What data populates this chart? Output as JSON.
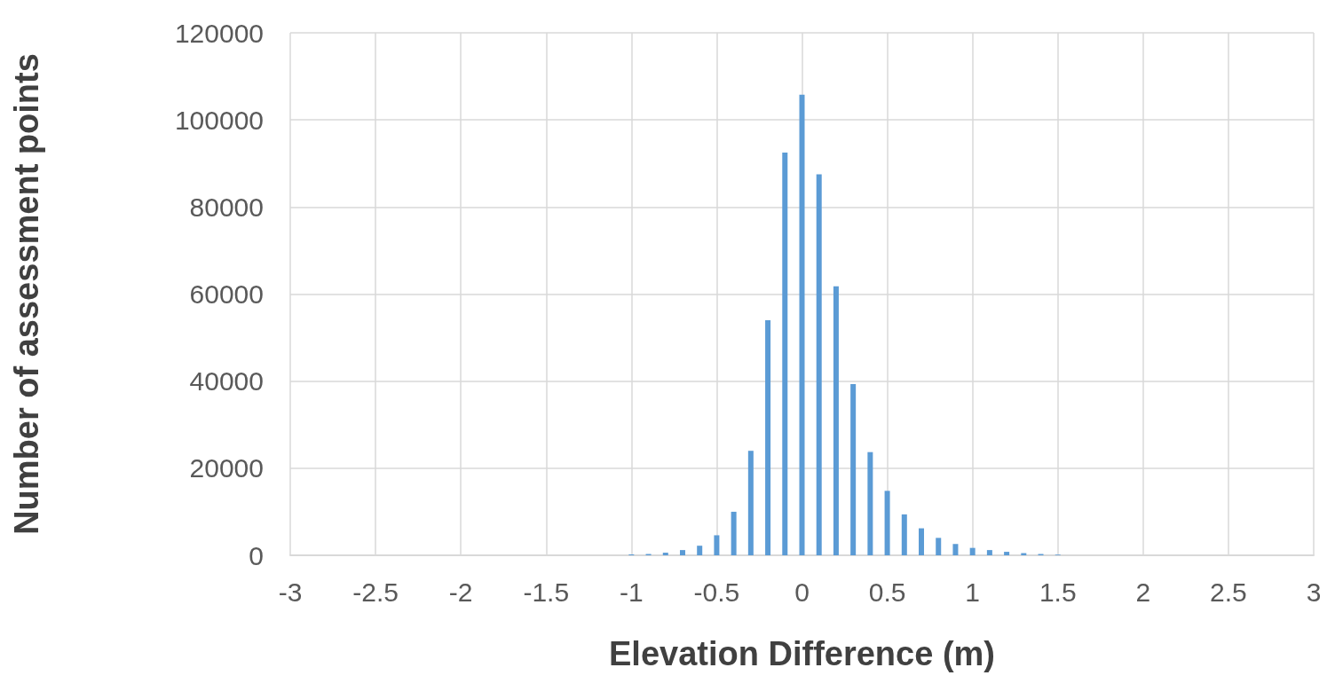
{
  "chart_data": {
    "type": "bar",
    "xlabel": "Elevation Difference (m)",
    "ylabel": "Number of assessment points",
    "x": [
      -1.0,
      -0.9,
      -0.8,
      -0.7,
      -0.6,
      -0.5,
      -0.4,
      -0.3,
      -0.2,
      -0.1,
      0,
      0.1,
      0.2,
      0.3,
      0.4,
      0.5,
      0.6,
      0.7,
      0.8,
      0.9,
      1.0,
      1.1,
      1.2,
      1.3,
      1.4,
      1.5
    ],
    "values": [
      200,
      300,
      600,
      1200,
      2200,
      4600,
      10000,
      24000,
      54000,
      92500,
      105800,
      87500,
      61800,
      39300,
      23700,
      14800,
      9400,
      6200,
      4000,
      2600,
      1700,
      1200,
      800,
      500,
      300,
      150
    ],
    "color": "#5b9bd5",
    "xlim": [
      -3,
      3
    ],
    "xticks": [
      -3,
      -2.5,
      -2,
      -1.5,
      -1,
      -0.5,
      0,
      0.5,
      1,
      1.5,
      2,
      2.5,
      3
    ],
    "ylim": [
      0,
      120000
    ],
    "yticks": [
      0,
      20000,
      40000,
      60000,
      80000,
      100000,
      120000
    ],
    "grid": true
  }
}
